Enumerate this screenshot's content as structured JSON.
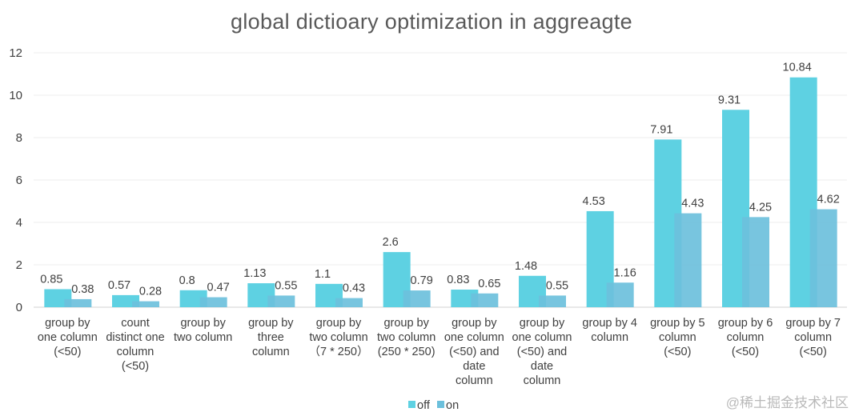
{
  "chart_data": {
    "type": "bar",
    "title": "global dictioary optimization in aggreagte",
    "xlabel": "",
    "ylabel": "",
    "ylim": [
      0,
      12
    ],
    "yticks": [
      0,
      2,
      4,
      6,
      8,
      10,
      12
    ],
    "categories": [
      [
        "group by",
        "one column",
        "(<50)"
      ],
      [
        "count",
        "distinct one",
        "column",
        "(<50)"
      ],
      [
        "group by",
        "two column"
      ],
      [
        "group by",
        "three",
        "column"
      ],
      [
        "group by",
        "two column",
        "（7 * 250）"
      ],
      [
        "group by",
        "two column",
        "(250 * 250)"
      ],
      [
        "group by",
        "one column",
        "(<50) and",
        "date",
        "column"
      ],
      [
        "group by",
        "one column",
        "(<50) and",
        "date",
        "column"
      ],
      [
        "group by 4",
        "column"
      ],
      [
        "group by 5",
        "column",
        "(<50)"
      ],
      [
        "group by 6",
        "column",
        "(<50)"
      ],
      [
        "group by 7",
        "column",
        "(<50)"
      ]
    ],
    "series": [
      {
        "name": "off",
        "color": "#5ed1e2",
        "values": [
          0.85,
          0.57,
          0.8,
          1.13,
          1.1,
          2.6,
          0.83,
          1.48,
          4.53,
          7.91,
          9.31,
          10.84
        ],
        "labels": [
          "0.85",
          "0.57",
          "0.8",
          "1.13",
          "1.1",
          "2.6",
          "0.83",
          "1.48",
          "4.53",
          "7.91",
          "9.31",
          "10.84"
        ]
      },
      {
        "name": "on",
        "color": "#6cc0dc",
        "values": [
          0.38,
          0.28,
          0.47,
          0.55,
          0.43,
          0.79,
          0.65,
          0.55,
          1.16,
          4.43,
          4.25,
          4.62
        ],
        "labels": [
          "0.38",
          "0.28",
          "0.47",
          "0.55",
          "0.43",
          "0.79",
          "0.65",
          "0.55",
          "1.16",
          "4.43",
          "4.25",
          "4.62"
        ]
      }
    ],
    "legend": "bottom",
    "grid": true
  },
  "watermark": "@稀土掘金技术社区"
}
